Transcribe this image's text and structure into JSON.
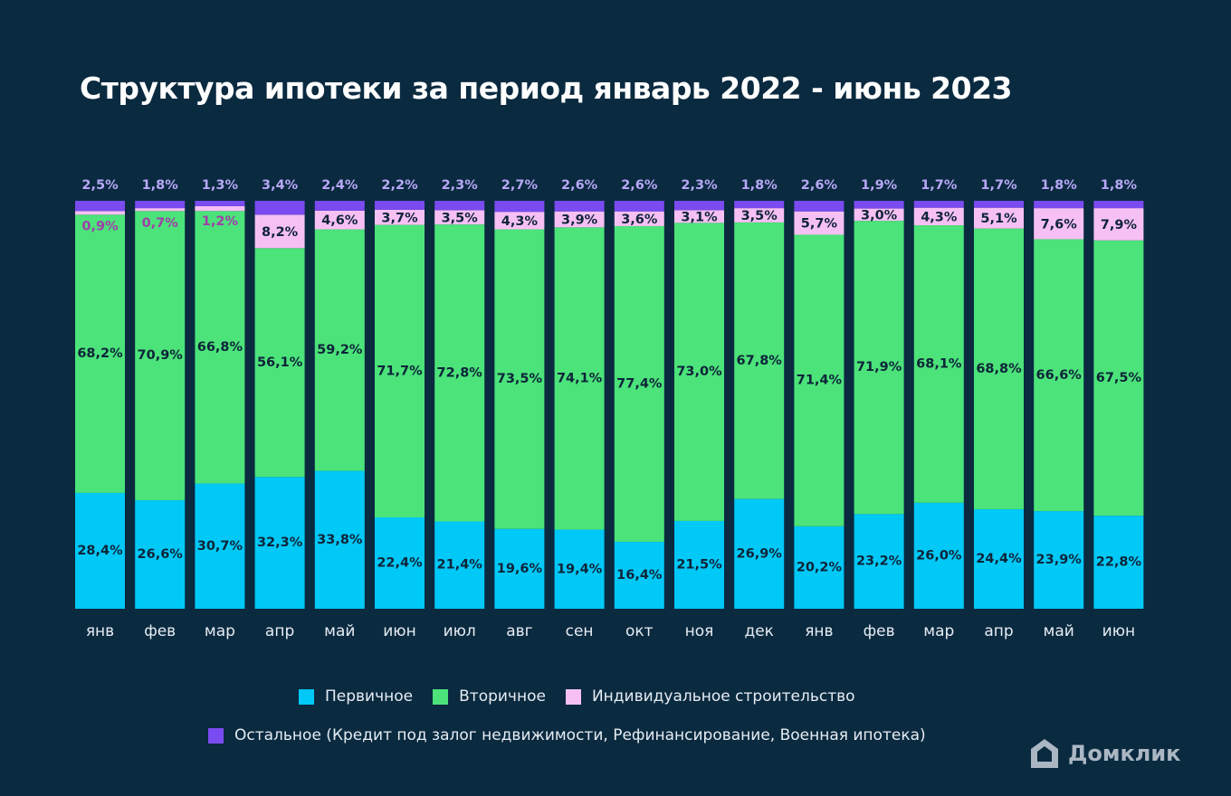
{
  "title": "Структура ипотеки за период январь 2022 - июнь 2023",
  "colors": {
    "background": "#0a2a40",
    "primary": "#00c8f7",
    "secondary": "#4be37a",
    "individual": "#f7c0f4",
    "other": "#7a4bf0",
    "label_other": "#b8a8f7",
    "label_individual": "#a040a8"
  },
  "legend": {
    "primary": "Первичное",
    "secondary": "Вторичное",
    "individual": "Индивидуальное строительство",
    "other": "Остальное (Кредит под залог недвижимости, Рефинансирование, Военная ипотека)"
  },
  "logo": {
    "text": "Домклик",
    "icon": "house-logo-icon"
  },
  "chart_data": {
    "type": "bar",
    "stacked": true,
    "categories": [
      "янв",
      "фев",
      "мар",
      "апр",
      "май",
      "июн",
      "июл",
      "авг",
      "сен",
      "окт",
      "ноя",
      "дек",
      "янв",
      "фев",
      "мар",
      "апр",
      "май",
      "июн"
    ],
    "series": [
      {
        "name": "Первичное",
        "key": "primary",
        "values": [
          28.4,
          26.6,
          30.7,
          32.3,
          33.8,
          22.4,
          21.4,
          19.6,
          19.4,
          16.4,
          21.5,
          26.9,
          20.2,
          23.2,
          26.0,
          24.4,
          23.9,
          22.8
        ]
      },
      {
        "name": "Вторичное",
        "key": "secondary",
        "values": [
          68.2,
          70.9,
          66.8,
          56.1,
          59.2,
          71.7,
          72.8,
          73.5,
          74.1,
          77.4,
          73.0,
          67.8,
          71.4,
          71.9,
          68.1,
          68.8,
          66.6,
          67.5
        ]
      },
      {
        "name": "Индивидуальное строительство",
        "key": "individual",
        "values": [
          0.9,
          0.7,
          1.2,
          8.2,
          4.6,
          3.7,
          3.5,
          4.3,
          3.9,
          3.6,
          3.1,
          3.5,
          5.7,
          3.0,
          4.3,
          5.1,
          7.6,
          7.9
        ]
      },
      {
        "name": "Остальное (Кредит под залог недвижимости, Рефинансирование, Военная ипотека)",
        "key": "other",
        "values": [
          2.5,
          1.8,
          1.3,
          3.4,
          2.4,
          2.2,
          2.3,
          2.7,
          2.6,
          2.6,
          2.3,
          1.8,
          2.6,
          1.9,
          1.7,
          1.7,
          1.8,
          1.8
        ]
      }
    ],
    "value_format": "decimal-comma-percent",
    "ylim": [
      0,
      100
    ],
    "grid": false,
    "legend_position": "bottom"
  }
}
